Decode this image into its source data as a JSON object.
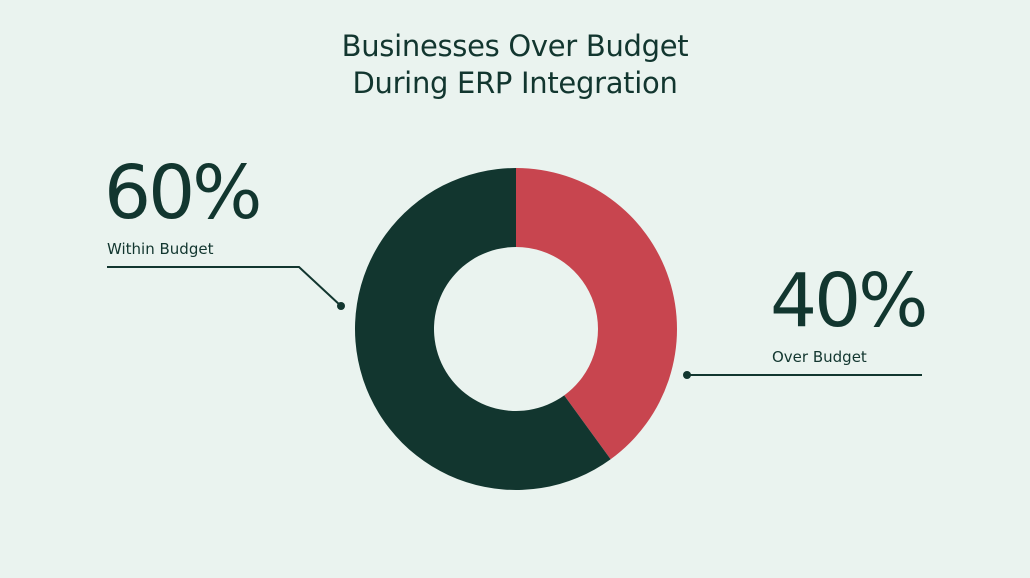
{
  "chart_data": {
    "type": "pie",
    "variant": "donut",
    "title": [
      "Businesses Over Budget",
      "During ERP Integration"
    ],
    "slices": [
      {
        "label": "Over Budget",
        "value": 40,
        "display": "40%",
        "color": "#C8454F"
      },
      {
        "label": "Within Budget",
        "value": 60,
        "display": "60%",
        "color": "#12362F"
      }
    ],
    "legend": "callout labels"
  },
  "colors": {
    "background": "#EAF3EF",
    "text": "#12362F"
  }
}
